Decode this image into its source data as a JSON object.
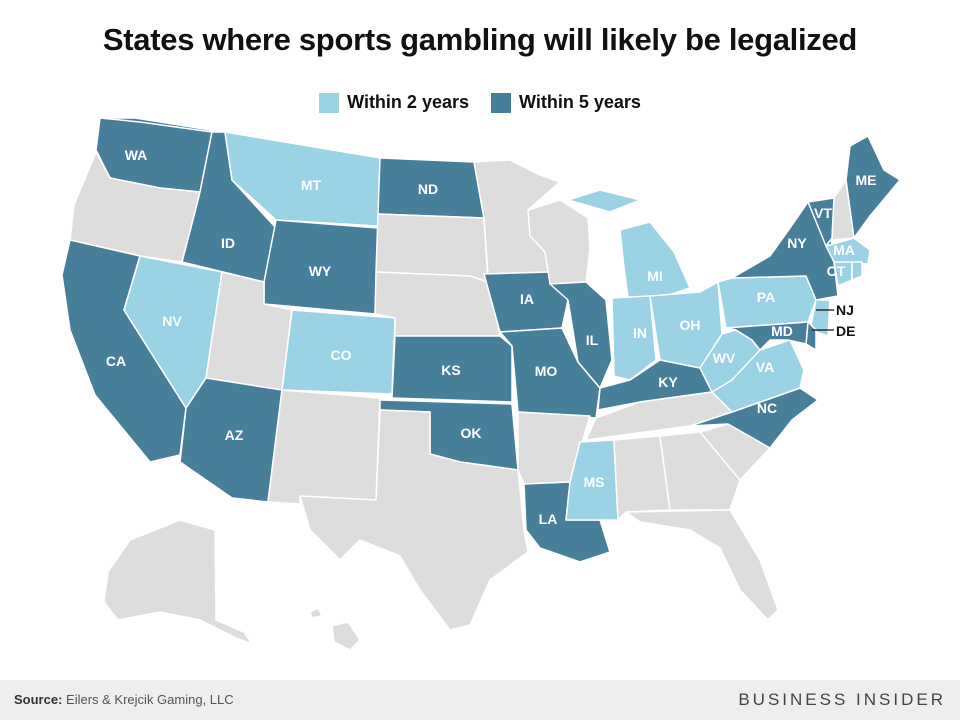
{
  "title": "States where sports gambling will likely be legalized",
  "legend": [
    {
      "label": "Within 2 years",
      "color": "#9cd2e6"
    },
    {
      "label": "Within 5 years",
      "color": "#477f9b"
    }
  ],
  "colors": {
    "within_2": "#9cd2e6",
    "within_5": "#477f9b",
    "none": "#dddddd"
  },
  "states": {
    "WA": {
      "label": "WA",
      "category": "within_5"
    },
    "OR": {
      "label": "",
      "category": "none"
    },
    "CA": {
      "label": "CA",
      "category": "within_5"
    },
    "ID": {
      "label": "ID",
      "category": "within_5"
    },
    "NV": {
      "label": "NV",
      "category": "within_2"
    },
    "MT": {
      "label": "MT",
      "category": "within_2"
    },
    "WY": {
      "label": "WY",
      "category": "within_5"
    },
    "UT": {
      "label": "",
      "category": "none"
    },
    "AZ": {
      "label": "AZ",
      "category": "within_5"
    },
    "CO": {
      "label": "CO",
      "category": "within_2"
    },
    "NM": {
      "label": "",
      "category": "none"
    },
    "ND": {
      "label": "ND",
      "category": "within_5"
    },
    "SD": {
      "label": "",
      "category": "none"
    },
    "NE": {
      "label": "",
      "category": "none"
    },
    "KS": {
      "label": "KS",
      "category": "within_5"
    },
    "OK": {
      "label": "OK",
      "category": "within_5"
    },
    "TX": {
      "label": "",
      "category": "none"
    },
    "MN": {
      "label": "",
      "category": "none"
    },
    "IA": {
      "label": "IA",
      "category": "within_5"
    },
    "MO": {
      "label": "MO",
      "category": "within_5"
    },
    "AR": {
      "label": "",
      "category": "none"
    },
    "LA": {
      "label": "LA",
      "category": "within_5"
    },
    "WI": {
      "label": "",
      "category": "none"
    },
    "IL": {
      "label": "IL",
      "category": "within_5"
    },
    "MS": {
      "label": "MS",
      "category": "within_2"
    },
    "MI": {
      "label": "MI",
      "category": "within_2"
    },
    "IN": {
      "label": "IN",
      "category": "within_2"
    },
    "OH": {
      "label": "OH",
      "category": "within_2"
    },
    "KY": {
      "label": "KY",
      "category": "within_5"
    },
    "TN": {
      "label": "",
      "category": "none"
    },
    "AL": {
      "label": "",
      "category": "none"
    },
    "GA": {
      "label": "",
      "category": "none"
    },
    "FL": {
      "label": "",
      "category": "none"
    },
    "SC": {
      "label": "",
      "category": "none"
    },
    "NC": {
      "label": "NC",
      "category": "within_5"
    },
    "VA": {
      "label": "VA",
      "category": "within_2"
    },
    "WV": {
      "label": "WV",
      "category": "within_2"
    },
    "PA": {
      "label": "PA",
      "category": "within_2"
    },
    "NY": {
      "label": "NY",
      "category": "within_5"
    },
    "VT": {
      "label": "VT",
      "category": "within_5"
    },
    "NH": {
      "label": "",
      "category": "none"
    },
    "ME": {
      "label": "ME",
      "category": "within_5"
    },
    "MA": {
      "label": "MA",
      "category": "within_2"
    },
    "CT": {
      "label": "CT",
      "category": "within_2"
    },
    "RI": {
      "label": "",
      "category": "within_2"
    },
    "NJ": {
      "label": "NJ",
      "category": "within_2"
    },
    "DE": {
      "label": "DE",
      "category": "within_5"
    },
    "MD": {
      "label": "MD",
      "category": "within_5"
    },
    "AK": {
      "label": "",
      "category": "none"
    },
    "HI": {
      "label": "",
      "category": "none"
    }
  },
  "footer": {
    "source_label": "Source:",
    "source_text": "Eilers & Krejcik Gaming, LLC",
    "brand": "BUSINESS INSIDER"
  }
}
